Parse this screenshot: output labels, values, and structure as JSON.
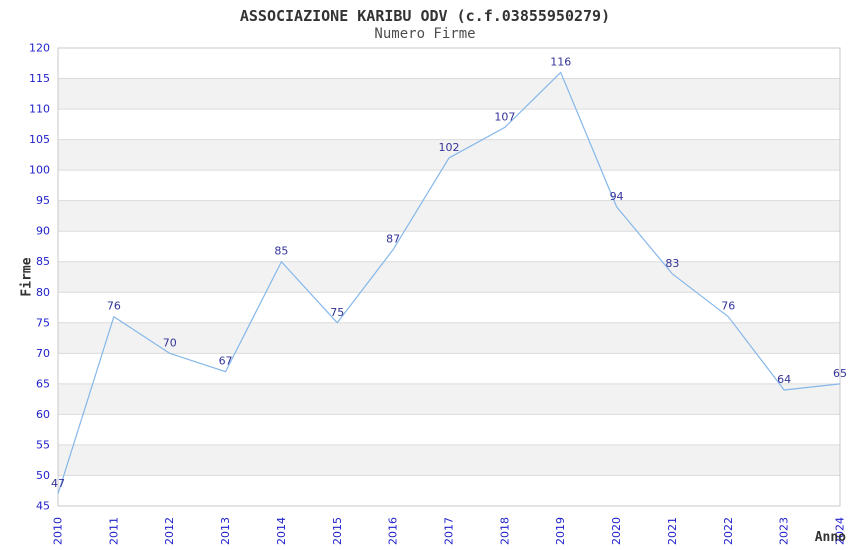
{
  "chart_data": {
    "type": "line",
    "title": "ASSOCIAZIONE KARIBU ODV (c.f.03855950279)",
    "subtitle": "Numero Firme",
    "xlabel": "Anno",
    "ylabel": "Firme",
    "x": [
      "2010",
      "2011",
      "2012",
      "2013",
      "2014",
      "2015",
      "2016",
      "2017",
      "2018",
      "2019",
      "2020",
      "2021",
      "2022",
      "2023",
      "2024"
    ],
    "values": [
      47,
      76,
      70,
      67,
      85,
      75,
      87,
      102,
      107,
      116,
      94,
      83,
      76,
      64,
      65
    ],
    "ylim": [
      45,
      120
    ],
    "ytick_step": 5,
    "grid": true,
    "alternating_bands": true,
    "legend": "none",
    "data_labels_visible": true,
    "colors": {
      "line": "#85b7ea",
      "tick_label": "#2121cc",
      "data_label": "#333399",
      "band": "#f2f2f2",
      "grid": "#dcdcdc",
      "plot_border": "#c8c8c8",
      "title": "#333333",
      "subtitle": "#4d4d4d",
      "axis_label": "#333333",
      "background": "#ffffff"
    }
  }
}
